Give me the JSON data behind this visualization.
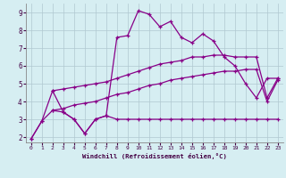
{
  "xlabel": "Windchill (Refroidissement éolien,°C)",
  "background_color": "#d6eef2",
  "grid_color": "#c8d8dc",
  "line_color": "#880088",
  "xlim": [
    -0.5,
    23.5
  ],
  "ylim": [
    1.7,
    9.5
  ],
  "x_ticks": [
    0,
    1,
    2,
    3,
    4,
    5,
    6,
    7,
    8,
    9,
    10,
    11,
    12,
    13,
    14,
    15,
    16,
    17,
    18,
    19,
    20,
    21,
    22,
    23
  ],
  "y_ticks": [
    2,
    3,
    4,
    5,
    6,
    7,
    8,
    9
  ],
  "series_max_x": [
    0,
    1,
    2,
    3,
    4,
    5,
    6,
    7,
    8,
    9,
    10,
    11,
    12,
    13,
    14,
    15,
    16,
    17,
    18,
    19,
    20,
    21,
    22,
    23
  ],
  "series_max_y": [
    1.9,
    2.9,
    4.6,
    3.4,
    3.0,
    2.2,
    3.0,
    3.2,
    7.6,
    7.7,
    9.1,
    8.9,
    8.2,
    8.5,
    7.6,
    7.3,
    7.8,
    7.4,
    6.5,
    6.0,
    5.0,
    4.2,
    5.3,
    5.3
  ],
  "series_q3_x": [
    2,
    3,
    4,
    5,
    6,
    7,
    8,
    9,
    10,
    11,
    12,
    13,
    14,
    15,
    16,
    17,
    18,
    19,
    20,
    21,
    22,
    23
  ],
  "series_q3_y": [
    4.6,
    4.7,
    4.8,
    4.9,
    5.0,
    5.1,
    5.3,
    5.5,
    5.7,
    5.9,
    6.1,
    6.2,
    6.3,
    6.5,
    6.5,
    6.6,
    6.6,
    6.5,
    6.5,
    6.5,
    4.2,
    5.3
  ],
  "series_q1_x": [
    2,
    3,
    4,
    5,
    6,
    7,
    8,
    9,
    10,
    11,
    12,
    13,
    14,
    15,
    16,
    17,
    18,
    19,
    20,
    21,
    22,
    23
  ],
  "series_q1_y": [
    3.5,
    3.6,
    3.8,
    3.9,
    4.0,
    4.2,
    4.4,
    4.5,
    4.7,
    4.9,
    5.0,
    5.2,
    5.3,
    5.4,
    5.5,
    5.6,
    5.7,
    5.7,
    5.8,
    5.8,
    4.0,
    5.2
  ],
  "series_min_x": [
    0,
    1,
    2,
    3,
    4,
    5,
    6,
    7,
    8,
    9,
    10,
    11,
    12,
    13,
    14,
    15,
    16,
    17,
    18,
    19,
    20,
    21,
    22,
    23
  ],
  "series_min_y": [
    1.9,
    2.9,
    3.5,
    3.4,
    3.0,
    2.2,
    3.0,
    3.2,
    3.0,
    3.0,
    3.0,
    3.0,
    3.0,
    3.0,
    3.0,
    3.0,
    3.0,
    3.0,
    3.0,
    3.0,
    3.0,
    3.0,
    3.0,
    3.0
  ]
}
